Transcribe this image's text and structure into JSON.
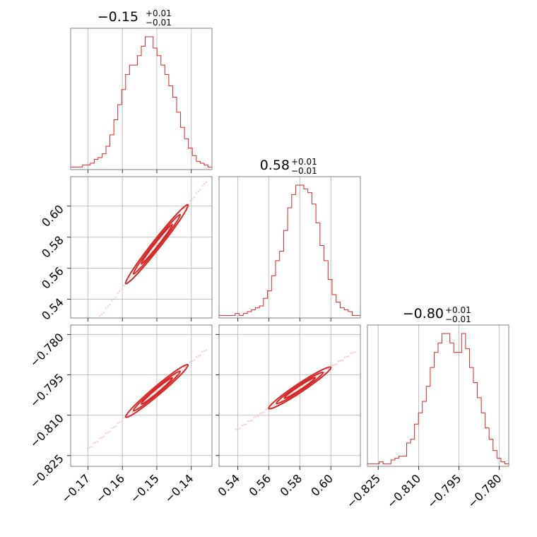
{
  "style": {
    "color": "#d62728",
    "light_color": "#f4b3b3"
  },
  "chart_data": {
    "type": "corner",
    "grid": true,
    "parameters": [
      {
        "title": {
          "main": "−0.15",
          "sup": "+0.01",
          "sub": "−0.01"
        },
        "range": [
          -0.175,
          -0.134
        ],
        "ticks": [
          -0.17,
          -0.16,
          -0.15,
          -0.14
        ],
        "tick_labels": [
          "−0.17",
          "−0.16",
          "−0.15",
          "−0.14"
        ],
        "hist": [
          1,
          1,
          1,
          2,
          2,
          3,
          5,
          6,
          8,
          12,
          18,
          26,
          34,
          42,
          50,
          55,
          55,
          60,
          65,
          70,
          70,
          64,
          60,
          55,
          50,
          44,
          38,
          30,
          22,
          16,
          11,
          7,
          4,
          3,
          2,
          1
        ],
        "hist_max": 70
      },
      {
        "title": {
          "main": "0.58",
          "sup": "+0.01",
          "sub": "−0.01"
        },
        "range": [
          0.528,
          0.619
        ],
        "ticks": [
          0.54,
          0.56,
          0.58,
          0.6
        ],
        "tick_labels": [
          "0.54",
          "0.56",
          "0.58",
          "0.60"
        ],
        "hist": [
          1,
          1,
          1,
          1,
          2,
          1,
          2,
          3,
          4,
          5,
          6,
          10,
          14,
          22,
          30,
          35,
          46,
          58,
          65,
          70,
          70,
          68,
          66,
          60,
          50,
          38,
          30,
          20,
          12,
          8,
          5,
          4,
          3,
          1,
          1
        ],
        "hist_max": 70
      },
      {
        "title": {
          "main": "−0.80",
          "sup": "+0.01",
          "sub": "−0.01"
        },
        "range": [
          -0.829,
          -0.7765
        ],
        "ticks": [
          -0.825,
          -0.81,
          -0.795,
          -0.78
        ],
        "tick_labels": [
          "−0.825",
          "−0.810",
          "−0.795",
          "−0.780"
        ],
        "hist": [
          1,
          1,
          1,
          2,
          1,
          1,
          3,
          4,
          5,
          5,
          12,
          14,
          22,
          28,
          34,
          42,
          52,
          60,
          65,
          70,
          70,
          65,
          60,
          60,
          70,
          62,
          52,
          44,
          36,
          28,
          20,
          14,
          8,
          4,
          2,
          1
        ],
        "hist_max": 70
      }
    ],
    "pairs": [
      {
        "x": 0,
        "y": 1,
        "relation": {
          "slope": 2.82,
          "intercept": 0.9985
        }
      },
      {
        "x": 0,
        "y": 2,
        "relation": {
          "slope": 1.08,
          "intercept": -0.639
        }
      },
      {
        "x": 1,
        "y": 2,
        "relation": {
          "slope": 0.383,
          "intercept": -1.022
        }
      }
    ]
  }
}
